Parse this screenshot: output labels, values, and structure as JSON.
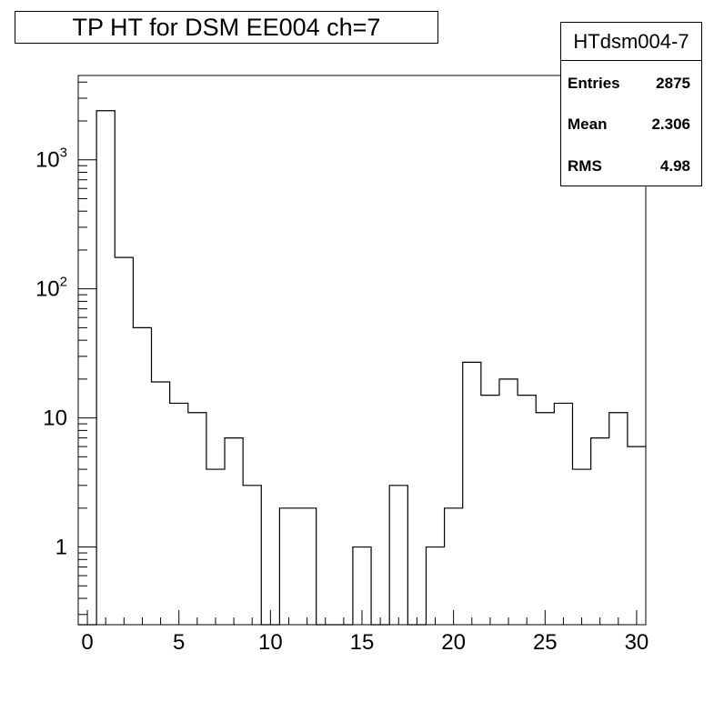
{
  "title": "TP HT for DSM EE004 ch=7",
  "stats": {
    "name": "HTdsm004-7",
    "rows": [
      {
        "key": "Entries",
        "value": "2875"
      },
      {
        "key": "Mean",
        "value": "2.306"
      },
      {
        "key": "RMS",
        "value": "4.98"
      }
    ]
  },
  "chart_data": {
    "type": "bar",
    "histogram": "step",
    "title": "TP HT for DSM EE004 ch=7",
    "xlabel": "",
    "ylabel": "",
    "xlim": [
      -0.5,
      30.5
    ],
    "ylim": [
      0.25,
      4500
    ],
    "yscale": "log",
    "grid": false,
    "legend": "none",
    "x_ticks": [
      0,
      5,
      10,
      15,
      20,
      25,
      30
    ],
    "x_tick_labels": [
      "0",
      "5",
      "10",
      "15",
      "20",
      "25",
      "30"
    ],
    "y_ticks": [
      1,
      10,
      100,
      1000
    ],
    "y_tick_labels": [
      "1",
      "10",
      "10^2",
      "10^3"
    ],
    "bin_width": 1,
    "bin_centers": [
      0,
      1,
      2,
      3,
      4,
      5,
      6,
      7,
      8,
      9,
      10,
      11,
      12,
      13,
      14,
      15,
      16,
      17,
      18,
      19,
      20,
      21,
      22,
      23,
      24,
      25,
      26,
      27,
      28,
      29,
      30
    ],
    "values": [
      0,
      2400,
      175,
      50,
      19,
      13,
      11,
      4,
      7,
      3,
      0,
      2,
      2,
      0,
      0,
      1,
      0,
      3,
      0,
      1,
      2,
      27,
      15,
      20,
      15,
      11,
      13,
      4,
      7,
      11,
      6
    ]
  }
}
